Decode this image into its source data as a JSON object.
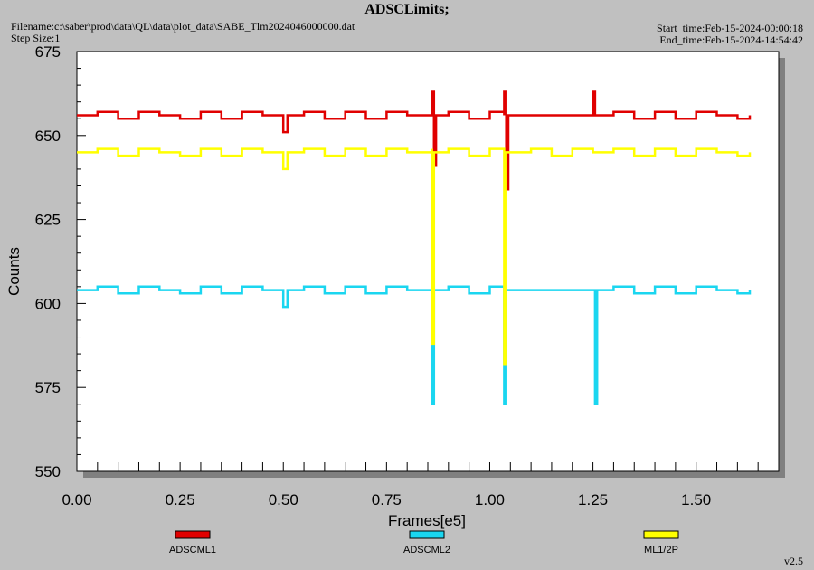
{
  "header": {
    "title": "ADSCLimits;",
    "filename": "Filename:c:\\saber\\prod\\data\\QL\\data\\plot_data\\SABE_Tlm2024046000000.dat",
    "step_size": "Step Size:1",
    "start_time": "Start_time:Feb-15-2024-00:00:18",
    "end_time": "End_time:Feb-15-2024-14:54:42"
  },
  "footer": {
    "version": "v2.5"
  },
  "colors": {
    "background": "#c0c0c0",
    "plot_background": "#ffffff",
    "shadow": "#808080",
    "ADSCML1": "#e00000",
    "ADSCML2": "#1ad6f0",
    "ML1/2P": "#ffff00"
  },
  "chart_data": {
    "type": "line",
    "title": "ADSCLimits;",
    "xlabel": "Frames[e5]",
    "ylabel": "Counts",
    "xlim": [
      0.0,
      1.7
    ],
    "ylim": [
      550,
      675
    ],
    "x_ticks": [
      "0.00",
      "0.25",
      "0.50",
      "0.75",
      "1.00",
      "1.25",
      "1.50"
    ],
    "y_ticks": [
      "550",
      "575",
      "600",
      "625",
      "650",
      "675"
    ],
    "grid": false,
    "legend_position": "bottom",
    "series": [
      {
        "name": "ADSCML1",
        "color": "#e00000",
        "baseline": 656,
        "x": [
          0.0,
          0.05,
          0.1,
          0.15,
          0.2,
          0.25,
          0.3,
          0.35,
          0.4,
          0.45,
          0.5,
          0.5,
          0.51,
          0.51,
          0.55,
          0.6,
          0.65,
          0.7,
          0.75,
          0.8,
          0.86,
          0.86,
          0.865,
          0.865,
          0.87,
          0.9,
          0.95,
          1.0,
          1.035,
          1.035,
          1.04,
          1.04,
          1.045,
          1.1,
          1.15,
          1.2,
          1.25,
          1.25,
          1.255,
          1.255,
          1.3,
          1.35,
          1.4,
          1.45,
          1.5,
          1.55,
          1.6,
          1.63
        ],
        "y": [
          656,
          657,
          655,
          657,
          656,
          655,
          657,
          655,
          657,
          656,
          655,
          651,
          651,
          656,
          657,
          655,
          657,
          655,
          657,
          656,
          657,
          663,
          663,
          641,
          656,
          657,
          655,
          657,
          656,
          663,
          663,
          634,
          656,
          656,
          656,
          656,
          656,
          663,
          663,
          656,
          657,
          655,
          657,
          655,
          657,
          656,
          655,
          656
        ]
      },
      {
        "name": "ADSCML2",
        "color": "#1ad6f0",
        "baseline": 604,
        "x": [
          0.0,
          0.05,
          0.1,
          0.15,
          0.2,
          0.25,
          0.3,
          0.35,
          0.4,
          0.45,
          0.5,
          0.5,
          0.51,
          0.51,
          0.55,
          0.6,
          0.65,
          0.7,
          0.75,
          0.8,
          0.86,
          0.86,
          0.865,
          0.865,
          0.87,
          0.9,
          0.95,
          1.0,
          1.035,
          1.035,
          1.04,
          1.04,
          1.045,
          1.1,
          1.15,
          1.2,
          1.255,
          1.255,
          1.26,
          1.26,
          1.3,
          1.35,
          1.4,
          1.45,
          1.5,
          1.55,
          1.6,
          1.63
        ],
        "y": [
          604,
          605,
          603,
          605,
          604,
          603,
          605,
          603,
          605,
          604,
          603,
          599,
          599,
          604,
          605,
          603,
          605,
          603,
          605,
          604,
          605,
          570,
          570,
          604,
          604,
          605,
          603,
          605,
          604,
          570,
          570,
          604,
          604,
          604,
          604,
          604,
          604,
          570,
          570,
          604,
          605,
          603,
          605,
          603,
          605,
          604,
          603,
          604
        ]
      },
      {
        "name": "ML1/2P",
        "color": "#ffff00",
        "baseline": 645,
        "x": [
          0.0,
          0.05,
          0.1,
          0.15,
          0.2,
          0.25,
          0.3,
          0.35,
          0.4,
          0.45,
          0.5,
          0.5,
          0.51,
          0.51,
          0.55,
          0.6,
          0.65,
          0.7,
          0.75,
          0.8,
          0.86,
          0.86,
          0.865,
          0.865,
          0.87,
          0.9,
          0.95,
          1.0,
          1.035,
          1.035,
          1.04,
          1.04,
          1.045,
          1.1,
          1.15,
          1.2,
          1.25,
          1.3,
          1.35,
          1.4,
          1.45,
          1.5,
          1.55,
          1.6,
          1.63
        ],
        "y": [
          645,
          646,
          644,
          646,
          645,
          644,
          646,
          644,
          646,
          645,
          644,
          640,
          640,
          645,
          646,
          644,
          646,
          644,
          646,
          645,
          646,
          588,
          588,
          645,
          645,
          646,
          644,
          646,
          645,
          582,
          582,
          645,
          645,
          646,
          644,
          646,
          645,
          646,
          644,
          646,
          644,
          646,
          645,
          644,
          645
        ]
      }
    ]
  }
}
